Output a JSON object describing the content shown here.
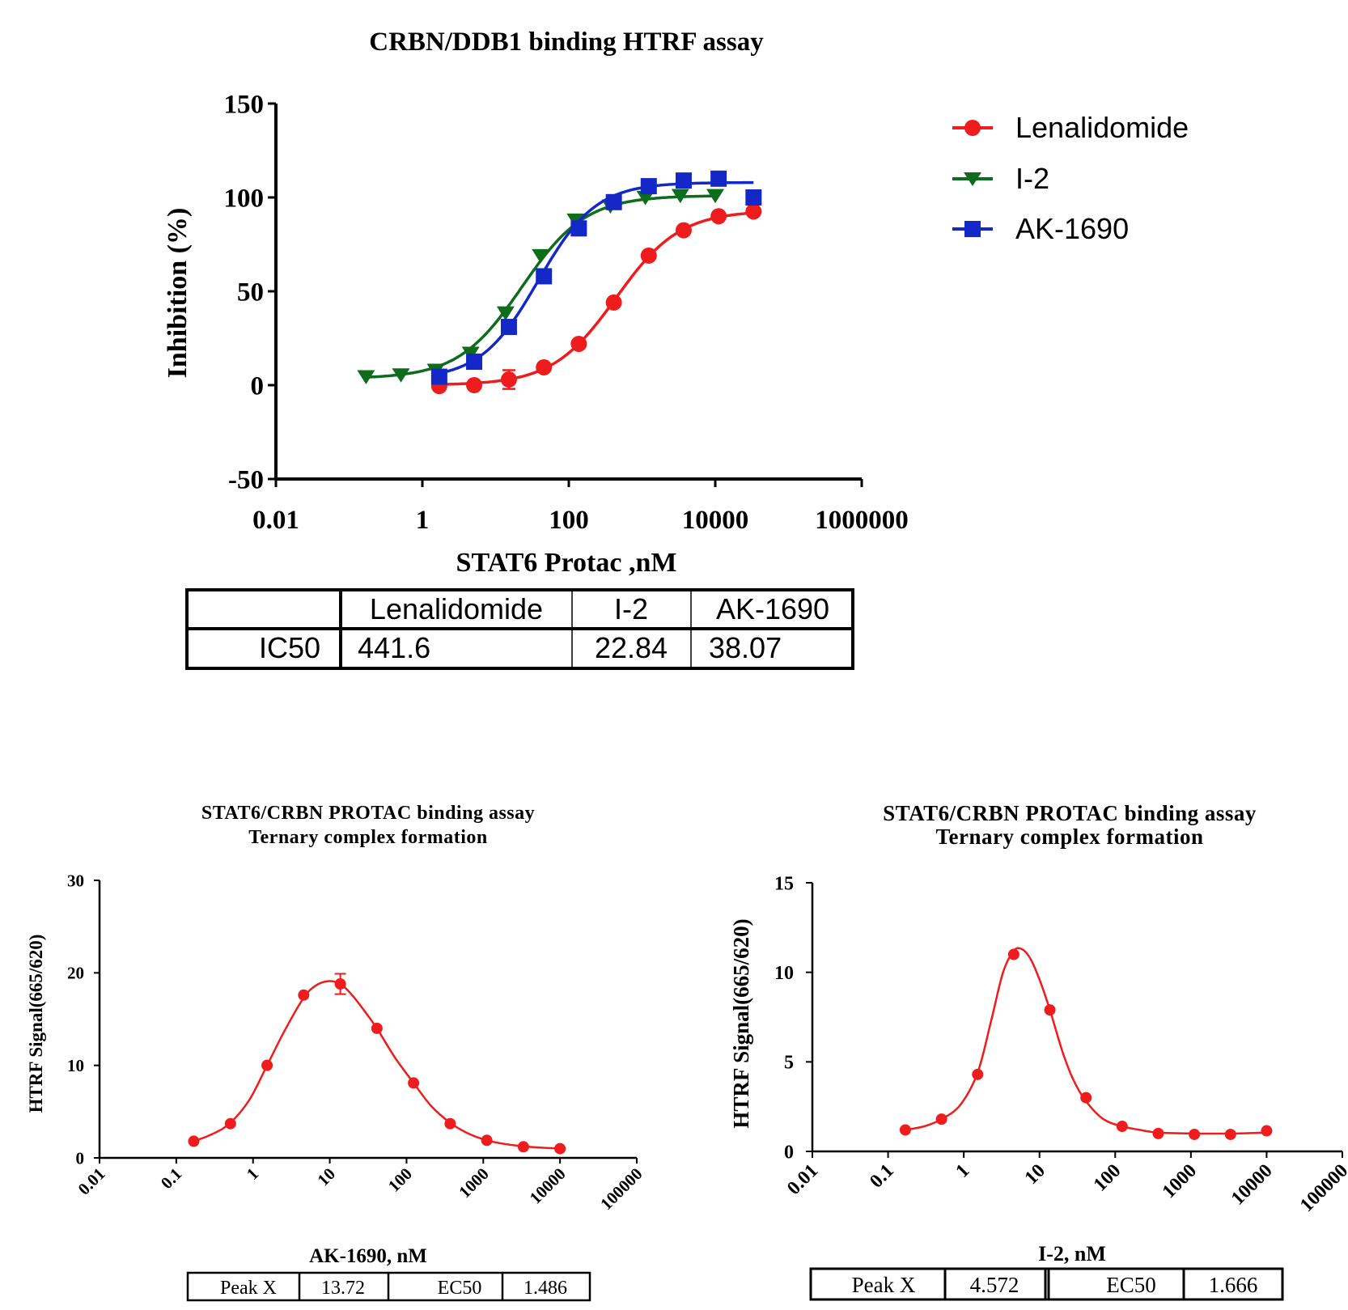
{
  "chart_data": [
    {
      "type": "line",
      "title": "CRBN/DDB1 binding HTRF assay",
      "xlabel": "STAT6 Protac ,nM",
      "ylabel": "Inhibition (%)",
      "xscale": "log",
      "xlim": [
        0.01,
        1000000
      ],
      "ylim": [
        -50,
        150
      ],
      "xticks": [
        0.01,
        1,
        100,
        10000,
        1000000
      ],
      "xtick_labels": [
        "0.01",
        "1",
        "100",
        "10000",
        "1000000"
      ],
      "yticks": [
        -50,
        0,
        50,
        100,
        150
      ],
      "ytick_labels": [
        "-50",
        "0",
        "50",
        "100",
        "150"
      ],
      "legend_position": "top-right, outside",
      "series": [
        {
          "name": "Lenalidomide",
          "color": "#ee1c1c",
          "marker": "circle",
          "x": [
            1.7,
            5.1,
            15.2,
            45.7,
            137,
            412,
            1235,
            3704,
            11111,
            33333
          ],
          "y": [
            -0.5,
            0,
            3,
            9.5,
            22,
            44,
            69,
            82.5,
            90,
            92.5
          ],
          "yerr": [
            0,
            0,
            5,
            0,
            0,
            0,
            0,
            0,
            0,
            0
          ],
          "fit": {
            "bottom": 0,
            "top": 93,
            "ic50": 441.6,
            "hill": 1.0
          }
        },
        {
          "name": "I-2",
          "color": "#0d6d1c",
          "marker": "triangle-down",
          "x": [
            0.17,
            0.51,
            1.52,
            4.57,
            13.7,
            41.2,
            123.5,
            370,
            1111,
            3333,
            10000
          ],
          "y": [
            4.5,
            5.5,
            8,
            17,
            38.5,
            69,
            88,
            95.5,
            100,
            101,
            101
          ],
          "fit": {
            "bottom": 3.5,
            "top": 101,
            "ic50": 22.84,
            "hill": 1.0
          }
        },
        {
          "name": "AK-1690",
          "color": "#1428c8",
          "marker": "square",
          "x": [
            1.7,
            5.1,
            15.2,
            45.7,
            137,
            412,
            1235,
            3704,
            11111,
            33333
          ],
          "y": [
            4.5,
            12.5,
            31,
            58,
            83.5,
            97.5,
            106,
            109,
            110,
            100
          ],
          "fit": {
            "bottom": 3,
            "top": 108,
            "ic50": 38.07,
            "hill": 1.1
          }
        }
      ],
      "table": {
        "columns": [
          "",
          "Lenalidomide",
          "I-2",
          "AK-1690"
        ],
        "rows": [
          [
            "IC50",
            "441.6",
            "22.84",
            "38.07"
          ]
        ]
      }
    },
    {
      "type": "line",
      "title": "STAT6/CRBN PROTAC binding assay",
      "subtitle": "Ternary complex formation",
      "xlabel": "AK-1690, nM",
      "ylabel": "HTRF Signal(665/620)",
      "xscale": "log",
      "xlim": [
        0.01,
        100000
      ],
      "ylim": [
        0,
        30
      ],
      "xticks": [
        0.01,
        0.1,
        1,
        10,
        100,
        1000,
        10000,
        100000
      ],
      "xtick_labels": [
        "0.01",
        "0.1",
        "1",
        "10",
        "100",
        "1000",
        "10000",
        "100000"
      ],
      "yticks": [
        0,
        10,
        20,
        30
      ],
      "ytick_labels": [
        "0",
        "10",
        "20",
        "30"
      ],
      "series": [
        {
          "name": "AK-1690",
          "color": "#ee1c1c",
          "marker": "circle",
          "x": [
            0.169,
            0.508,
            1.524,
            4.572,
            13.72,
            41.15,
            123.5,
            370.4,
            1111,
            3333,
            10000
          ],
          "y": [
            1.8,
            3.7,
            10,
            17.6,
            18.8,
            14,
            8.1,
            3.7,
            1.9,
            1.2,
            1.0
          ],
          "yerr": [
            0,
            0,
            0,
            0,
            1.1,
            0,
            0,
            0,
            0,
            0,
            0
          ],
          "fit_x": [
            0.169,
            0.3,
            0.508,
            0.9,
            1.524,
            2.6,
            4.572,
            6.5,
            9.5,
            13.72,
            20,
            30,
            41.15,
            70,
            123.5,
            210,
            370.4,
            650,
            1111,
            1900,
            3333,
            5800,
            10000
          ],
          "fit_y": [
            1.8,
            2.6,
            3.8,
            6.3,
            10,
            13.8,
            17.3,
            18.6,
            19.1,
            18.8,
            17.5,
            15.6,
            14,
            10.9,
            8.1,
            5.6,
            3.8,
            2.6,
            1.9,
            1.5,
            1.25,
            1.1,
            1.0
          ]
        }
      ],
      "table": {
        "cells": [
          "Peak X",
          "13.72",
          "EC50",
          "1.486"
        ]
      }
    },
    {
      "type": "line",
      "title": "STAT6/CRBN PROTAC binding assay",
      "subtitle": "Ternary complex formation",
      "xlabel": "I-2, nM",
      "ylabel": "HTRF Signal(665/620)",
      "xscale": "log",
      "xlim": [
        0.01,
        100000
      ],
      "ylim": [
        0,
        15
      ],
      "xticks": [
        0.01,
        0.1,
        1,
        10,
        100,
        1000,
        10000,
        100000
      ],
      "xtick_labels": [
        "0.01",
        "0.1",
        "1",
        "10",
        "100",
        "1000",
        "10000",
        "100000"
      ],
      "yticks": [
        0,
        5,
        10,
        15
      ],
      "ytick_labels": [
        "0",
        "5",
        "10",
        "15"
      ],
      "series": [
        {
          "name": "I-2",
          "color": "#ee1c1c",
          "marker": "circle",
          "x": [
            0.169,
            0.508,
            1.524,
            4.572,
            13.72,
            41.15,
            123.5,
            370.4,
            1111,
            3333,
            10000
          ],
          "y": [
            1.2,
            1.8,
            4.3,
            11.0,
            7.9,
            3.0,
            1.4,
            1.0,
            0.95,
            0.95,
            1.15
          ],
          "fit_x": [
            0.169,
            0.3,
            0.508,
            0.9,
            1.524,
            2.3,
            3.3,
            4.572,
            5.8,
            7.5,
            10,
            13.72,
            20,
            28,
            41.15,
            70,
            123.5,
            210,
            370.4,
            1111,
            3333,
            10000
          ],
          "fit_y": [
            1.2,
            1.4,
            1.8,
            2.6,
            4.4,
            7.3,
            10.0,
            11.2,
            11.3,
            10.8,
            9.6,
            7.9,
            5.6,
            4.0,
            2.8,
            1.8,
            1.4,
            1.2,
            1.05,
            1.0,
            1.0,
            1.05
          ]
        }
      ],
      "table": {
        "cells": [
          "Peak X",
          "4.572",
          "EC50",
          "1.666"
        ]
      }
    }
  ]
}
